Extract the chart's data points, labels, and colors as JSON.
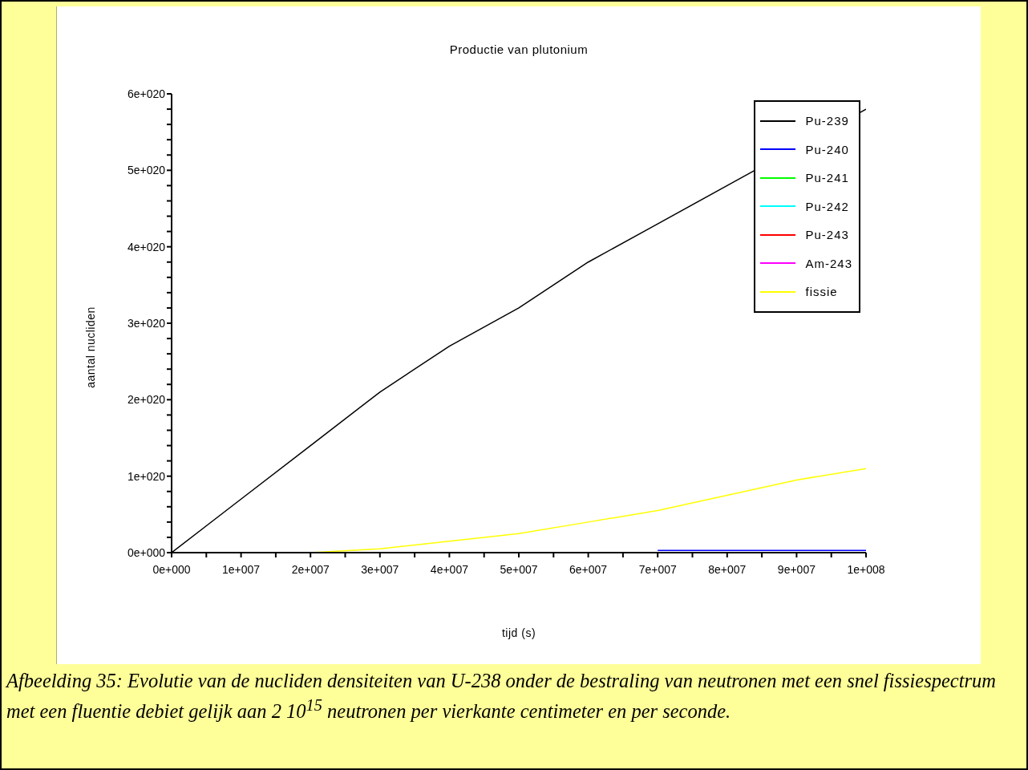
{
  "chart_data": {
    "type": "line",
    "title": "Productie van plutonium",
    "xlabel": "tijd (s)",
    "ylabel": "aantal nucliden",
    "x": [
      0,
      10000000,
      20000000,
      30000000,
      40000000,
      50000000,
      60000000,
      70000000,
      80000000,
      90000000,
      100000000
    ],
    "series": [
      {
        "name": "Pu-239",
        "color": "#000000",
        "values": [
          0,
          7e+19,
          1.4e+20,
          2.1e+20,
          2.7e+20,
          3.2e+20,
          3.8e+20,
          4.3e+20,
          4.8e+20,
          null,
          5.8e+20
        ]
      },
      {
        "name": "Pu-240",
        "color": "#0000ff",
        "values": [
          null,
          null,
          null,
          null,
          null,
          null,
          null,
          3e+18,
          3e+18,
          3e+18,
          3e+18
        ]
      },
      {
        "name": "Pu-241",
        "color": "#00ff00",
        "values": [
          null,
          null,
          null,
          null,
          null,
          null,
          null,
          null,
          null,
          null,
          null
        ]
      },
      {
        "name": "Pu-242",
        "color": "#00ffff",
        "values": [
          null,
          null,
          null,
          null,
          null,
          null,
          null,
          null,
          null,
          null,
          null
        ]
      },
      {
        "name": "Pu-243",
        "color": "#ff0000",
        "values": [
          null,
          null,
          null,
          null,
          null,
          null,
          null,
          null,
          null,
          null,
          null
        ]
      },
      {
        "name": "Am-243",
        "color": "#ff00ff",
        "values": [
          null,
          null,
          null,
          null,
          null,
          null,
          null,
          null,
          null,
          null,
          null
        ]
      },
      {
        "name": "fissie",
        "color": "#ffff00",
        "values": [
          0,
          0,
          0,
          5e+18,
          1.5e+19,
          2.5e+19,
          4e+19,
          5.5e+19,
          7.5e+19,
          9.5e+19,
          1.1e+20
        ]
      }
    ],
    "xlim": [
      0,
      100000000
    ],
    "xticks": [
      {
        "value": 0,
        "label": "0e+000"
      },
      {
        "value": 5000000,
        "label": null
      },
      {
        "value": 10000000,
        "label": "1e+007"
      },
      {
        "value": 15000000,
        "label": null
      },
      {
        "value": 20000000,
        "label": "2e+007"
      },
      {
        "value": 25000000,
        "label": null
      },
      {
        "value": 30000000,
        "label": "3e+007"
      },
      {
        "value": 35000000,
        "label": null
      },
      {
        "value": 40000000,
        "label": "4e+007"
      },
      {
        "value": 45000000,
        "label": null
      },
      {
        "value": 50000000,
        "label": "5e+007"
      },
      {
        "value": 55000000,
        "label": null
      },
      {
        "value": 60000000,
        "label": "6e+007"
      },
      {
        "value": 65000000,
        "label": null
      },
      {
        "value": 70000000,
        "label": "7e+007"
      },
      {
        "value": 75000000,
        "label": null
      },
      {
        "value": 80000000,
        "label": "8e+007"
      },
      {
        "value": 85000000,
        "label": null
      },
      {
        "value": 90000000,
        "label": "9e+007"
      },
      {
        "value": 95000000,
        "label": null
      },
      {
        "value": 100000000,
        "label": "1e+008"
      }
    ],
    "ylim": [
      0,
      6e+20
    ],
    "yticks": [
      {
        "value": 0,
        "label": "0e+000"
      },
      {
        "value": 2e+19,
        "label": null
      },
      {
        "value": 4e+19,
        "label": null
      },
      {
        "value": 6e+19,
        "label": null
      },
      {
        "value": 8e+19,
        "label": null
      },
      {
        "value": 1e+20,
        "label": "1e+020"
      },
      {
        "value": 1.2e+20,
        "label": null
      },
      {
        "value": 1.4e+20,
        "label": null
      },
      {
        "value": 1.6e+20,
        "label": null
      },
      {
        "value": 1.8e+20,
        "label": null
      },
      {
        "value": 2e+20,
        "label": "2e+020"
      },
      {
        "value": 2.2e+20,
        "label": null
      },
      {
        "value": 2.4e+20,
        "label": null
      },
      {
        "value": 2.6e+20,
        "label": null
      },
      {
        "value": 2.8e+20,
        "label": null
      },
      {
        "value": 3e+20,
        "label": "3e+020"
      },
      {
        "value": 3.2e+20,
        "label": null
      },
      {
        "value": 3.4e+20,
        "label": null
      },
      {
        "value": 3.6e+20,
        "label": null
      },
      {
        "value": 3.8e+20,
        "label": null
      },
      {
        "value": 4e+20,
        "label": "4e+020"
      },
      {
        "value": 4.2e+20,
        "label": null
      },
      {
        "value": 4.4e+20,
        "label": null
      },
      {
        "value": 4.6e+20,
        "label": null
      },
      {
        "value": 4.8e+20,
        "label": null
      },
      {
        "value": 5e+20,
        "label": "5e+020"
      },
      {
        "value": 5.2e+20,
        "label": null
      },
      {
        "value": 5.4e+20,
        "label": null
      },
      {
        "value": 5.6e+20,
        "label": null
      },
      {
        "value": 5.8e+20,
        "label": null
      },
      {
        "value": 6e+20,
        "label": "6e+020"
      }
    ],
    "grid": false,
    "legend": "top right",
    "marker": "none",
    "line_style": "solid",
    "annotations": [
      "Afbeelding 35: Evolutie van de nucliden densiteiten van U-238 onder de bestraling van neutronen met een snel fissiespectrum met een fluentie debiet gelijk aan 2 10$^{15}$ neutronen per vierkante centimeter en per seconde."
    ]
  }
}
